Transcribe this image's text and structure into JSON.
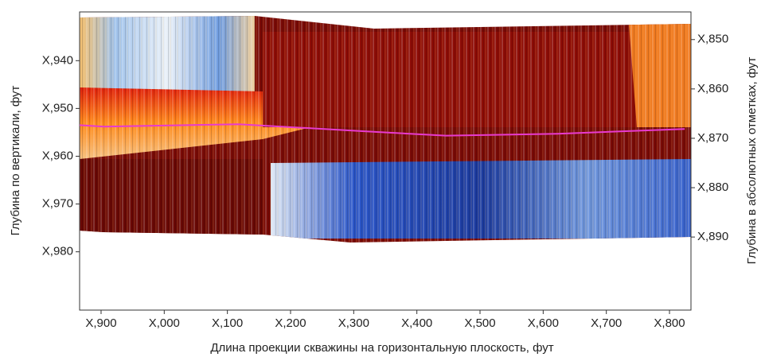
{
  "chart_data": {
    "type": "line",
    "x_label": "Длина проекции скважины на горизонтальную плоскость, фут",
    "y_label": "Глубина по вертикали, фут",
    "y2_label": "Глубина в абсолютных отметках, фут",
    "x": [
      866,
      904,
      1118,
      1320,
      1446,
      1623,
      1824
    ],
    "series": [
      {
        "color": "#e83ad0",
        "values": [
          953.5,
          953.8,
          953.3,
          954.8,
          955.7,
          955.3,
          954.3
        ]
      }
    ],
    "xlim": [
      866,
      1834
    ],
    "xticks": [
      {
        "value": 900,
        "label": "X,900"
      },
      {
        "value": 1000,
        "label": "X,000"
      },
      {
        "value": 1100,
        "label": "X,100"
      },
      {
        "value": 1200,
        "label": "X,200"
      },
      {
        "value": 1300,
        "label": "X,300"
      },
      {
        "value": 1400,
        "label": "X,400"
      },
      {
        "value": 1500,
        "label": "X,500"
      },
      {
        "value": 1600,
        "label": "X,600"
      },
      {
        "value": 1700,
        "label": "X,700"
      },
      {
        "value": 1800,
        "label": "X,800"
      }
    ],
    "ylim": [
      992.2,
      929.8
    ],
    "yticks": [
      {
        "value": 940,
        "label": "X,940"
      },
      {
        "value": 950,
        "label": "X,950"
      },
      {
        "value": 960,
        "label": "X,960"
      },
      {
        "value": 970,
        "label": "X,970"
      },
      {
        "value": 980,
        "label": "X,980"
      }
    ],
    "y2lim": [
      904.8,
      844.4
    ],
    "y2ticks": [
      {
        "value": 850,
        "label": "X,850"
      },
      {
        "value": 860,
        "label": "X,860"
      },
      {
        "value": 870,
        "label": "X,870"
      },
      {
        "value": 880,
        "label": "X,880"
      },
      {
        "value": 890,
        "label": "X,890"
      }
    ]
  }
}
